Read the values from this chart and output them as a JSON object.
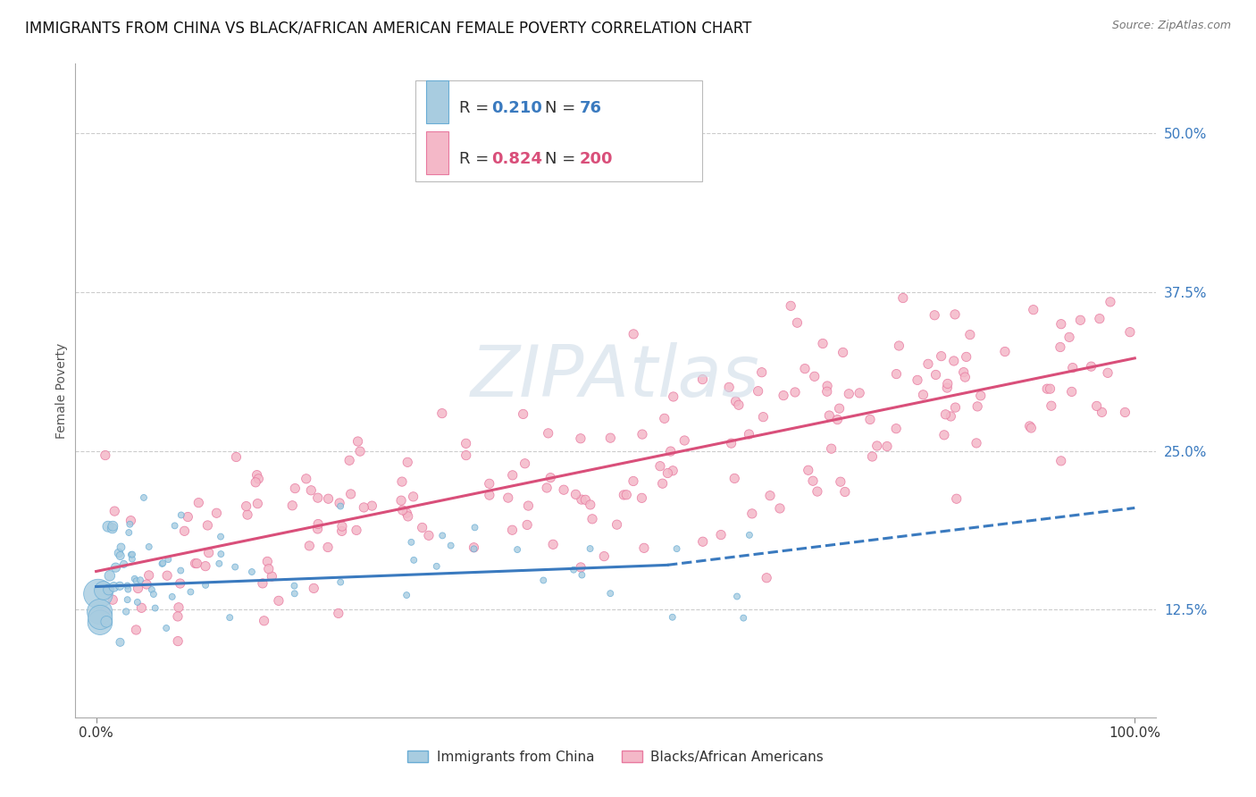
{
  "title": "IMMIGRANTS FROM CHINA VS BLACK/AFRICAN AMERICAN FEMALE POVERTY CORRELATION CHART",
  "source": "Source: ZipAtlas.com",
  "ylabel": "Female Poverty",
  "y_tick_values": [
    0.125,
    0.25,
    0.375,
    0.5
  ],
  "y_tick_labels": [
    "12.5%",
    "25.0%",
    "37.5%",
    "50.0%"
  ],
  "legend_blue_r": "0.210",
  "legend_blue_n": "76",
  "legend_pink_r": "0.824",
  "legend_pink_n": "200",
  "legend_label_blue": "Immigrants from China",
  "legend_label_pink": "Blacks/African Americans",
  "blue_color": "#a8cce0",
  "blue_edge_color": "#6aadd5",
  "pink_color": "#f4b8c8",
  "pink_edge_color": "#e87aa0",
  "blue_line_color": "#3a7abf",
  "pink_line_color": "#d94f7a",
  "blue_r_color": "#3a7abf",
  "pink_r_color": "#d94f7a",
  "watermark_color": "#d0dce8",
  "background_color": "#ffffff",
  "grid_color": "#cccccc",
  "title_fontsize": 12,
  "source_fontsize": 9,
  "axis_label_fontsize": 10,
  "tick_fontsize": 11,
  "legend_fontsize": 13,
  "xlim": [
    0.0,
    1.0
  ],
  "ylim": [
    0.04,
    0.555
  ]
}
